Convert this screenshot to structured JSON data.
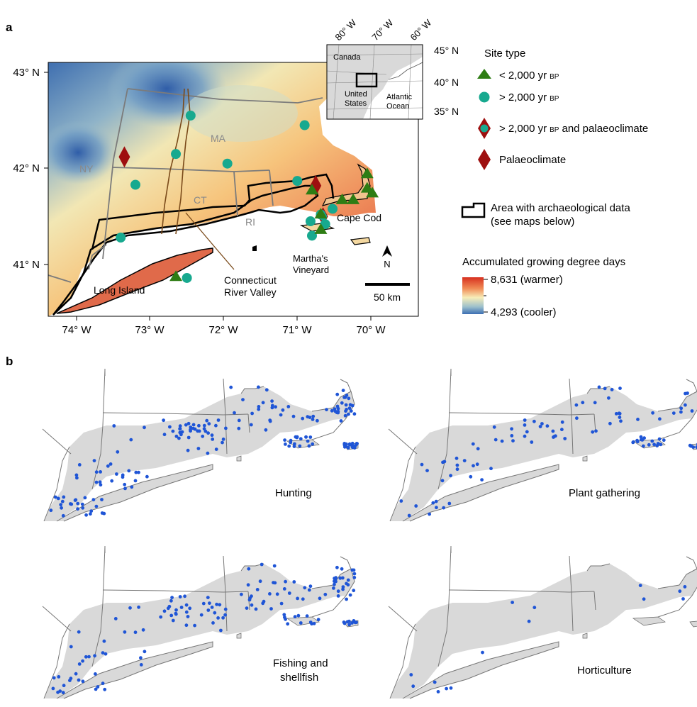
{
  "panel_a": {
    "label": "a",
    "lat_labels": [
      "43° N",
      "42° N",
      "41° N"
    ],
    "lon_labels": [
      "74° W",
      "73° W",
      "72° W",
      "71° W",
      "70° W"
    ],
    "state_labels": [
      "NY",
      "MA",
      "CT",
      "RI"
    ],
    "place_labels": {
      "long_island": "Long Island",
      "cape_cod": "Cape Cod",
      "marthas_vineyard": [
        "Martha's",
        "Vineyard"
      ],
      "connecticut_river_valley": [
        "Connecticut",
        "River Valley"
      ]
    },
    "north_label": "N",
    "scale_label": "50 km",
    "inset": {
      "lon_labels": [
        "80° W",
        "70° W",
        "60° W"
      ],
      "lat_labels": [
        "45° N",
        "40° N",
        "35° N"
      ],
      "canada": "Canada",
      "united_states": [
        "United",
        "States"
      ],
      "atlantic": [
        "Atlantic",
        "Ocean"
      ]
    },
    "sites": {
      "lt2000": [
        [
          41.78,
          -70.8
        ],
        [
          41.68,
          -70.39
        ],
        [
          41.68,
          -70.24
        ],
        [
          41.95,
          -70.05
        ],
        [
          41.8,
          -70.05
        ],
        [
          41.75,
          -69.98
        ],
        [
          41.53,
          -70.68
        ],
        [
          41.37,
          -70.68
        ],
        [
          40.88,
          -72.65
        ]
      ],
      "gt2000": [
        [
          42.55,
          -72.45
        ],
        [
          42.45,
          -70.9
        ],
        [
          42.15,
          -72.65
        ],
        [
          42.05,
          -71.95
        ],
        [
          41.83,
          -73.2
        ],
        [
          41.87,
          -71.0
        ],
        [
          41.58,
          -70.52
        ],
        [
          41.52,
          -70.68
        ],
        [
          41.45,
          -70.82
        ],
        [
          41.42,
          -70.62
        ],
        [
          41.3,
          -70.8
        ],
        [
          41.28,
          -73.4
        ],
        [
          40.86,
          -72.5
        ]
      ],
      "gt2000_palaeo": [
        [
          41.5,
          -70.65
        ]
      ],
      "palaeo": [
        [
          42.12,
          -73.35
        ],
        [
          41.82,
          -70.75
        ]
      ]
    }
  },
  "legend": {
    "site_type_title": "Site type",
    "lt2000_main": "< 2,000 yr",
    "lt2000_sub": "BP",
    "gt2000_main": "> 2,000 yr",
    "gt2000_sub": "BP",
    "gt2000_palaeo_main": "> 2,000 yr",
    "gt2000_palaeo_sub": "BP",
    "gt2000_palaeo_tail": "and palaeoclimate",
    "palaeo": "Palaeoclimate",
    "area_line1": "Area with archaeological data",
    "area_line2": "(see maps below)",
    "gdd_title": "Accumulated growing degree days",
    "gdd_max": "8,631 (warmer)",
    "gdd_min": "4,293 (cooler)",
    "colors": {
      "triangle": "#2e7d14",
      "circle": "#17a98f",
      "diamond": "#9e0f0f",
      "point": "#1f55d6"
    }
  },
  "panel_b": {
    "label": "b",
    "maps": [
      {
        "title": [
          "Hunting"
        ],
        "point_count": 190
      },
      {
        "title": [
          "Plant gathering"
        ],
        "point_count": 105
      },
      {
        "title": [
          "Fishing and",
          "shellfish"
        ],
        "point_count": 150
      },
      {
        "title": [
          "Horticulture"
        ],
        "point_count": 15
      }
    ]
  }
}
